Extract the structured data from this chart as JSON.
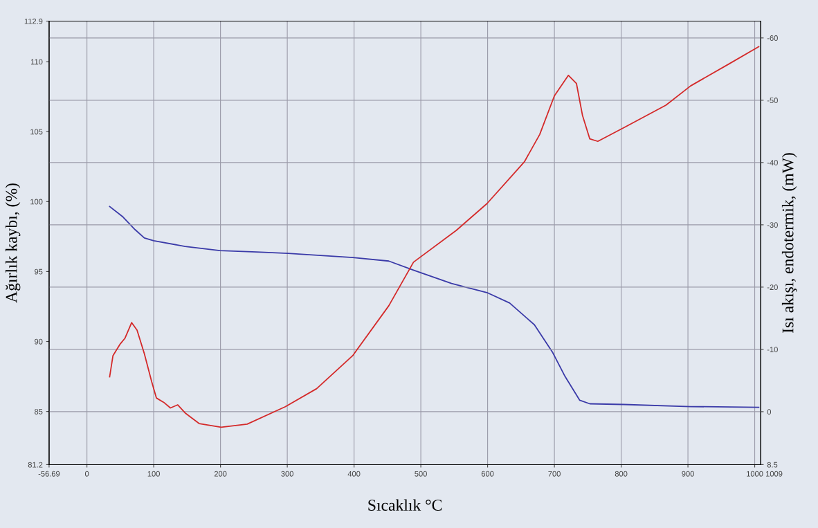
{
  "chart_data": {
    "type": "line",
    "xlabel": "Sıcaklık °C",
    "ylabel": "Ağırlık kaybı, (%)",
    "y2label": "Isı akışı, endotermik, (mW)",
    "xlim": [
      -56.69,
      1009
    ],
    "xticks": [
      -56.69,
      0,
      100,
      200,
      300,
      400,
      500,
      600,
      700,
      800,
      900,
      1000
    ],
    "annotations": [
      "1009"
    ],
    "ylim": [
      81.2,
      112.9
    ],
    "yticks": [
      81.2,
      85,
      90,
      95,
      100,
      105,
      110,
      112.9
    ],
    "y2lim": [
      8.5,
      -62.7
    ],
    "y2ticks": [
      8.5,
      0,
      -10,
      -20,
      -30,
      -40,
      -50,
      -60
    ],
    "grid": true,
    "marker": "none",
    "line_style": "solid",
    "series": [
      {
        "color": "#3a3aa8",
        "x": [
          34,
          54,
          72,
          86,
          100,
          147,
          199,
          254,
          301,
          398,
          452,
          489,
          546,
          599,
          633,
          670,
          697,
          716,
          738,
          753,
          804,
          904,
          1006
        ],
        "values": [
          99.65,
          98.9,
          98.0,
          97.4,
          97.2,
          96.8,
          96.5,
          96.4,
          96.3,
          96.0,
          95.75,
          95.1,
          94.15,
          93.5,
          92.75,
          91.2,
          89.25,
          87.5,
          85.8,
          85.55,
          85.5,
          85.35,
          85.3
        ]
      },
      {
        "color": "#d42a2a",
        "axis": "y2",
        "x": [
          34,
          39,
          50,
          57,
          67,
          75,
          86,
          97,
          104,
          115,
          125,
          136,
          147,
          168,
          201,
          240,
          297,
          344,
          398,
          452,
          489,
          553,
          599,
          655,
          678,
          700,
          721,
          733,
          742,
          753,
          765,
          804,
          867,
          904,
          961,
          1006
        ],
        "values": [
          -5.6,
          -9.0,
          -10.9,
          -11.8,
          -14.3,
          -13.1,
          -9.3,
          -4.8,
          -2.2,
          -1.5,
          -0.6,
          -1.1,
          0.2,
          1.9,
          2.5,
          2.0,
          -0.8,
          -3.7,
          -9.0,
          -17.0,
          -24.0,
          -29.1,
          -33.4,
          -40.1,
          -44.5,
          -50.7,
          -54.0,
          -52.7,
          -47.6,
          -43.8,
          -43.4,
          -45.6,
          -49.2,
          -52.3,
          -55.8,
          -58.6
        ]
      }
    ]
  }
}
